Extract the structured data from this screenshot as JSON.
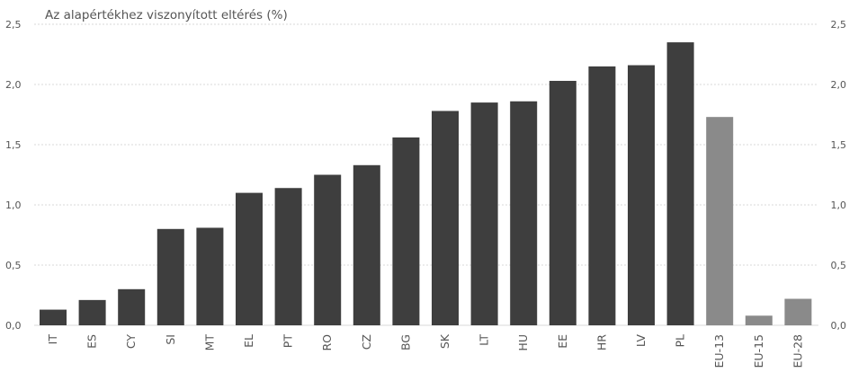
{
  "chart_data": {
    "type": "bar",
    "title": "Az alapértékhez viszonyított eltérés (%)",
    "xlabel": "",
    "ylabel": "",
    "categories": [
      "IT",
      "ES",
      "CY",
      "SI",
      "MT",
      "EL",
      "PT",
      "RO",
      "CZ",
      "BG",
      "SK",
      "LT",
      "HU",
      "EE",
      "HR",
      "LV",
      "PL",
      "EU-13",
      "EU-15",
      "EU-28"
    ],
    "values": [
      0.13,
      0.21,
      0.3,
      0.8,
      0.81,
      1.1,
      1.14,
      1.25,
      1.33,
      1.56,
      1.78,
      1.85,
      1.86,
      2.03,
      2.15,
      2.16,
      2.35,
      1.73,
      0.08,
      0.22
    ],
    "ylim": [
      0,
      2.5
    ],
    "yticks": [
      "0,0",
      "0,5",
      "1,0",
      "1,5",
      "2,0",
      "2,5"
    ],
    "ytick_values": [
      0,
      0.5,
      1.0,
      1.5,
      2.0,
      2.5
    ],
    "grid": true,
    "y_axis_both_sides": true,
    "colors": {
      "country_bar": "#3e3e3e",
      "aggregate_bar": "#8a8a8a",
      "grid": "#d8d8d8",
      "text": "#555555"
    },
    "aggregate_categories": [
      "EU-13",
      "EU-15",
      "EU-28"
    ]
  }
}
